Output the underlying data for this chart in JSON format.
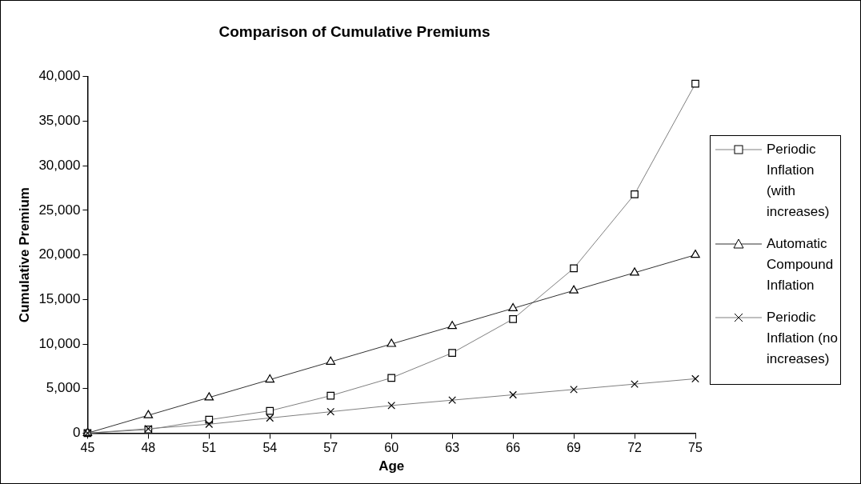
{
  "chart_data": {
    "type": "line",
    "title": "Comparison of Cumulative Premiums",
    "xlabel": "Age",
    "ylabel": "Cumulative Premium",
    "x": [
      45,
      48,
      51,
      54,
      57,
      60,
      63,
      66,
      69,
      72,
      75
    ],
    "xlim": [
      45,
      75
    ],
    "xticks": [
      45,
      48,
      51,
      54,
      57,
      60,
      63,
      66,
      69,
      72,
      75
    ],
    "ylim": [
      0,
      40000
    ],
    "yticks": [
      {
        "value": 0,
        "label": "0"
      },
      {
        "value": 5000,
        "label": "5,000"
      },
      {
        "value": 10000,
        "label": "10,000"
      },
      {
        "value": 15000,
        "label": "15,000"
      },
      {
        "value": 20000,
        "label": "20,000"
      },
      {
        "value": 25000,
        "label": "25,000"
      },
      {
        "value": 30000,
        "label": "30,000"
      },
      {
        "value": 35000,
        "label": "35,000"
      },
      {
        "value": 40000,
        "label": "40,000"
      }
    ],
    "grid": false,
    "legend": "right",
    "line_style": "solid",
    "series": [
      {
        "name": "Periodic Inflation (with increases)",
        "color": "#808080",
        "marker": "square",
        "values": [
          0,
          400,
          1500,
          2500,
          4200,
          6200,
          9000,
          12800,
          18500,
          26800,
          39200
        ]
      },
      {
        "name": "Automatic Compound Inflation",
        "color": "#333333",
        "marker": "triangle",
        "values": [
          0,
          2000,
          4000,
          6000,
          8000,
          10000,
          12000,
          14000,
          16000,
          18000,
          20000
        ]
      },
      {
        "name": "Periodic Inflation (no increases)",
        "color": "#808080",
        "marker": "cross",
        "values": [
          0,
          500,
          1000,
          1700,
          2400,
          3100,
          3700,
          4300,
          4900,
          5500,
          6100
        ]
      }
    ]
  }
}
